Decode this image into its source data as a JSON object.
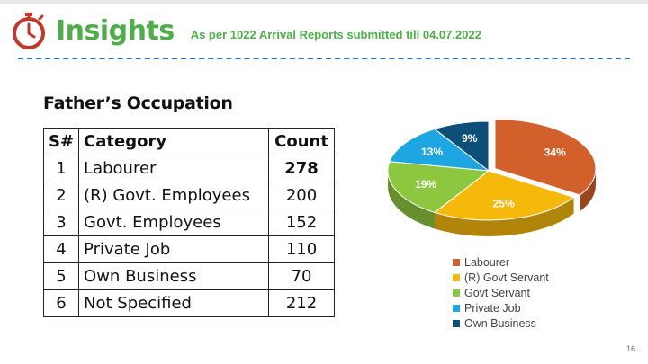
{
  "header": {
    "title": "Insights",
    "subtitle": "As per 1022 Arrival Reports submitted till 04.07.2022"
  },
  "section_title": "Father’s Occupation",
  "table": {
    "headers": [
      "S#",
      "Category",
      "Count"
    ],
    "rows": [
      {
        "sn": "1",
        "category": "Labourer",
        "count": "278"
      },
      {
        "sn": "2",
        "category": "(R) Govt. Employees",
        "count": "200"
      },
      {
        "sn": "3",
        "category": "Govt. Employees",
        "count": "152"
      },
      {
        "sn": "4",
        "category": "Private Job",
        "count": "110"
      },
      {
        "sn": "5",
        "category": "Own Business",
        "count": "70"
      },
      {
        "sn": "6",
        "category": "Not Specified",
        "count": "212"
      }
    ]
  },
  "chart_data": {
    "type": "pie",
    "labels": [
      "Labourer",
      "(R) Govt Servant",
      "Govt Servant",
      "Private Job",
      "Own Business"
    ],
    "values": [
      34,
      25,
      19,
      13,
      9
    ],
    "data_labels": [
      "34%",
      "25%",
      "19%",
      "13%",
      "9%"
    ],
    "colors": [
      "#d2602b",
      "#f5b90c",
      "#8dc63f",
      "#1ea6e3",
      "#0e4f7a"
    ],
    "title": "",
    "legend": "bottom"
  },
  "page_number": "16",
  "icons": {
    "header_icon": "stopwatch-icon"
  },
  "colors": {
    "accent": "#4fae4a",
    "stopwatch": "#c0392b",
    "rule": "#2f6fad"
  }
}
